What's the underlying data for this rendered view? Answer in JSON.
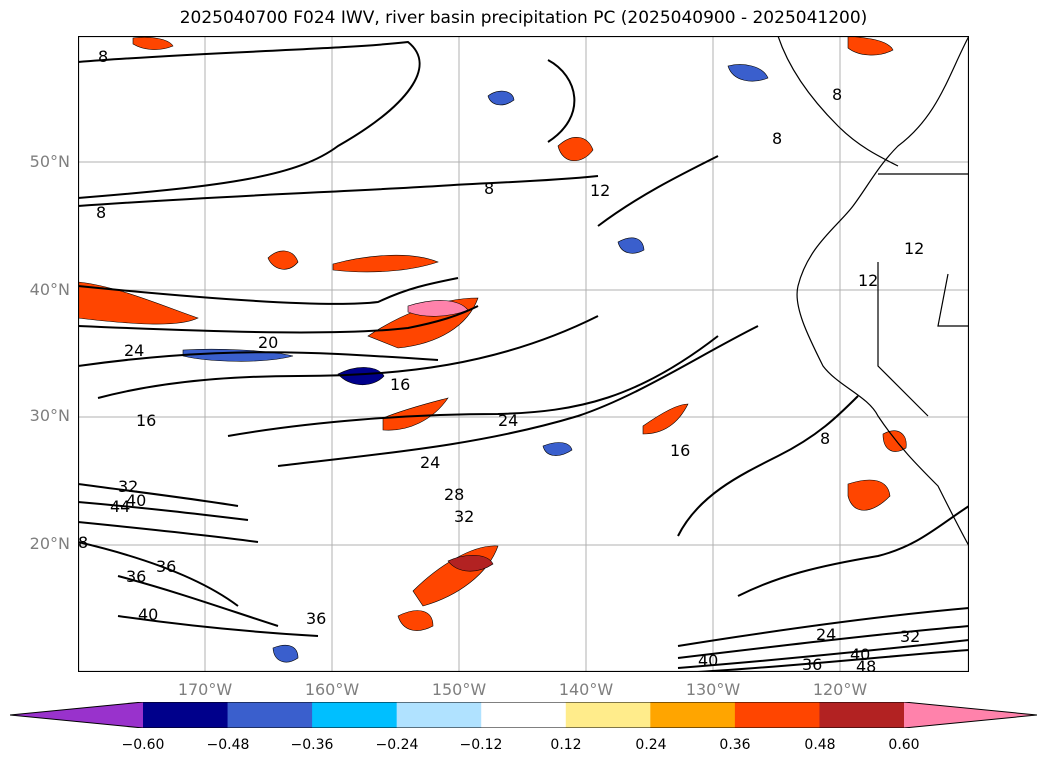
{
  "title": "2025040700 F024 IWV, river basin precipitation PC (2025040900 - 2025041200)",
  "map": {
    "lat_labels": [
      "50°N",
      "40°N",
      "30°N",
      "20°N"
    ],
    "lon_labels": [
      "170°W",
      "160°W",
      "150°W",
      "140°W",
      "130°W",
      "120°W"
    ],
    "contour_labels": [
      "8",
      "8",
      "8",
      "8",
      "8",
      "12",
      "12",
      "12",
      "20",
      "24",
      "16",
      "16",
      "24",
      "24",
      "28",
      "32",
      "32",
      "40",
      "44",
      "8",
      "36",
      "36",
      "40",
      "36",
      "16",
      "8",
      "24",
      "32",
      "40",
      "36",
      "40",
      "48"
    ]
  },
  "colorbar": {
    "colors": [
      "#9932cc",
      "#00008b",
      "#3a5fcd",
      "#00bfff",
      "#b0e2ff",
      "#ffffff",
      "#ffec8b",
      "#ffa500",
      "#ff4500",
      "#b22222",
      "#ff82ab"
    ],
    "ticks": [
      "−0.60",
      "−0.48",
      "−0.36",
      "−0.24",
      "−0.12",
      "0.12",
      "0.24",
      "0.36",
      "0.48",
      "0.60"
    ]
  }
}
